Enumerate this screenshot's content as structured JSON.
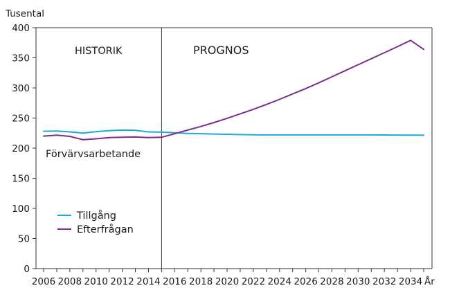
{
  "chart_data": {
    "type": "line",
    "ylabel": "Tusental",
    "xlabel": "År",
    "xlim": [
      2006,
      2035
    ],
    "ylim": [
      0,
      400
    ],
    "yticks": [
      0,
      50,
      100,
      150,
      200,
      250,
      300,
      350,
      400
    ],
    "xticks": [
      2006,
      2008,
      2010,
      2012,
      2014,
      2016,
      2018,
      2020,
      2022,
      2024,
      2026,
      2028,
      2030,
      2032,
      2034
    ],
    "divider_year": 2015,
    "annotations": {
      "history": "HISTORIK",
      "forecast": "PROGNOS",
      "group": "Förvärvsarbetande"
    },
    "grid": false,
    "legend": "bottom-left",
    "series": [
      {
        "name": "Tillgång",
        "color": "#1ba8dc",
        "x": [
          2006,
          2007,
          2008,
          2009,
          2010,
          2011,
          2012,
          2013,
          2014,
          2015,
          2016,
          2017,
          2018,
          2019,
          2020,
          2021,
          2022,
          2023,
          2024,
          2025,
          2026,
          2027,
          2028,
          2029,
          2030,
          2031,
          2032,
          2033,
          2034,
          2035
        ],
        "values": [
          228,
          228.5,
          227,
          225,
          227.5,
          229,
          230,
          229.5,
          227,
          226.5,
          225.5,
          224.5,
          224,
          223.5,
          223,
          222.5,
          222.2,
          222,
          222,
          222,
          222,
          222,
          222,
          222,
          222,
          222,
          221.8,
          221.7,
          221.6,
          221.5
        ]
      },
      {
        "name": "Efterfrågan",
        "color": "#7b2d8e",
        "x": [
          2006,
          2007,
          2008,
          2009,
          2010,
          2011,
          2012,
          2013,
          2014,
          2015,
          2016,
          2017,
          2018,
          2019,
          2020,
          2021,
          2022,
          2023,
          2024,
          2025,
          2026,
          2027,
          2028,
          2029,
          2030,
          2031,
          2032,
          2033,
          2034,
          2035
        ],
        "values": [
          220,
          221.5,
          219.5,
          214,
          215.5,
          217.5,
          218,
          218.5,
          217.5,
          218,
          224,
          230,
          236,
          242.5,
          249.5,
          257,
          264.5,
          272.5,
          281,
          290,
          299,
          308.5,
          318.5,
          328.5,
          338.5,
          348.5,
          358.5,
          368.5,
          379,
          364
        ]
      }
    ]
  }
}
